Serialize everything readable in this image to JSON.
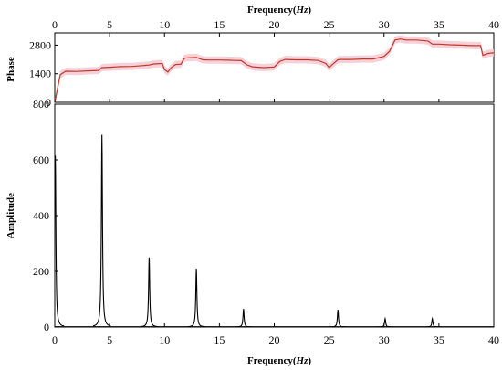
{
  "chart_data": [
    {
      "type": "area",
      "panel": "top",
      "xlabel": "Frequency (Hz)",
      "ylabel": "Phase",
      "xlim": [
        0,
        40
      ],
      "ylim": [
        0,
        3400
      ],
      "x_ticks": [
        0,
        5,
        10,
        15,
        20,
        25,
        30,
        35,
        40
      ],
      "y_ticks": [
        0,
        1400,
        2800
      ],
      "grid": false,
      "series": [
        {
          "color": "#c0392b",
          "band_color": "#f6c9d2",
          "x": [
            0,
            0.5,
            1,
            2,
            3,
            4,
            4.3,
            5,
            6,
            7,
            8,
            8.6,
            9,
            9.8,
            10,
            10.3,
            10.6,
            11,
            11.5,
            11.8,
            12,
            12.9,
            13.5,
            14,
            15,
            16,
            17,
            17.5,
            18,
            19,
            20,
            20.5,
            21,
            22,
            23,
            24,
            24.7,
            25,
            25.3,
            25.8,
            26,
            27,
            28,
            29,
            30,
            30.5,
            31,
            31.5,
            32,
            33,
            34,
            34.4,
            35,
            36,
            37,
            38,
            38.8,
            39,
            39.5,
            40
          ],
          "y": [
            0,
            1350,
            1520,
            1510,
            1540,
            1560,
            1700,
            1720,
            1750,
            1760,
            1800,
            1830,
            1880,
            1900,
            1600,
            1480,
            1700,
            1850,
            1870,
            2150,
            2180,
            2200,
            2080,
            2070,
            2070,
            2060,
            2040,
            1840,
            1740,
            1700,
            1730,
            2000,
            2100,
            2080,
            2080,
            2050,
            1900,
            1700,
            1850,
            2080,
            2100,
            2100,
            2120,
            2120,
            2250,
            2500,
            3050,
            3100,
            3050,
            3050,
            3000,
            2850,
            2850,
            2820,
            2800,
            2780,
            2780,
            2300,
            2400,
            2420
          ]
        }
      ]
    },
    {
      "type": "line",
      "panel": "bottom",
      "xlabel": "Frequency (Hz)",
      "ylabel": "Amplitude",
      "xlim": [
        0,
        40
      ],
      "ylim": [
        0,
        800
      ],
      "x_ticks": [
        0,
        5,
        10,
        15,
        20,
        25,
        30,
        35,
        40
      ],
      "y_ticks": [
        0,
        200,
        400,
        600,
        800
      ],
      "grid": false,
      "series": [
        {
          "color": "#000000",
          "peaks": [
            {
              "x": 0.05,
              "y": 615
            },
            {
              "x": 4.3,
              "y": 690
            },
            {
              "x": 8.6,
              "y": 250
            },
            {
              "x": 12.9,
              "y": 210
            },
            {
              "x": 17.2,
              "y": 65
            },
            {
              "x": 25.8,
              "y": 62
            },
            {
              "x": 30.1,
              "y": 30
            },
            {
              "x": 34.4,
              "y": 30
            }
          ]
        }
      ]
    }
  ],
  "labels": {
    "x_title": "Frequency",
    "x_unit": "Hz",
    "top_ylabel": "Phase",
    "bottom_ylabel": "Amplitude"
  }
}
